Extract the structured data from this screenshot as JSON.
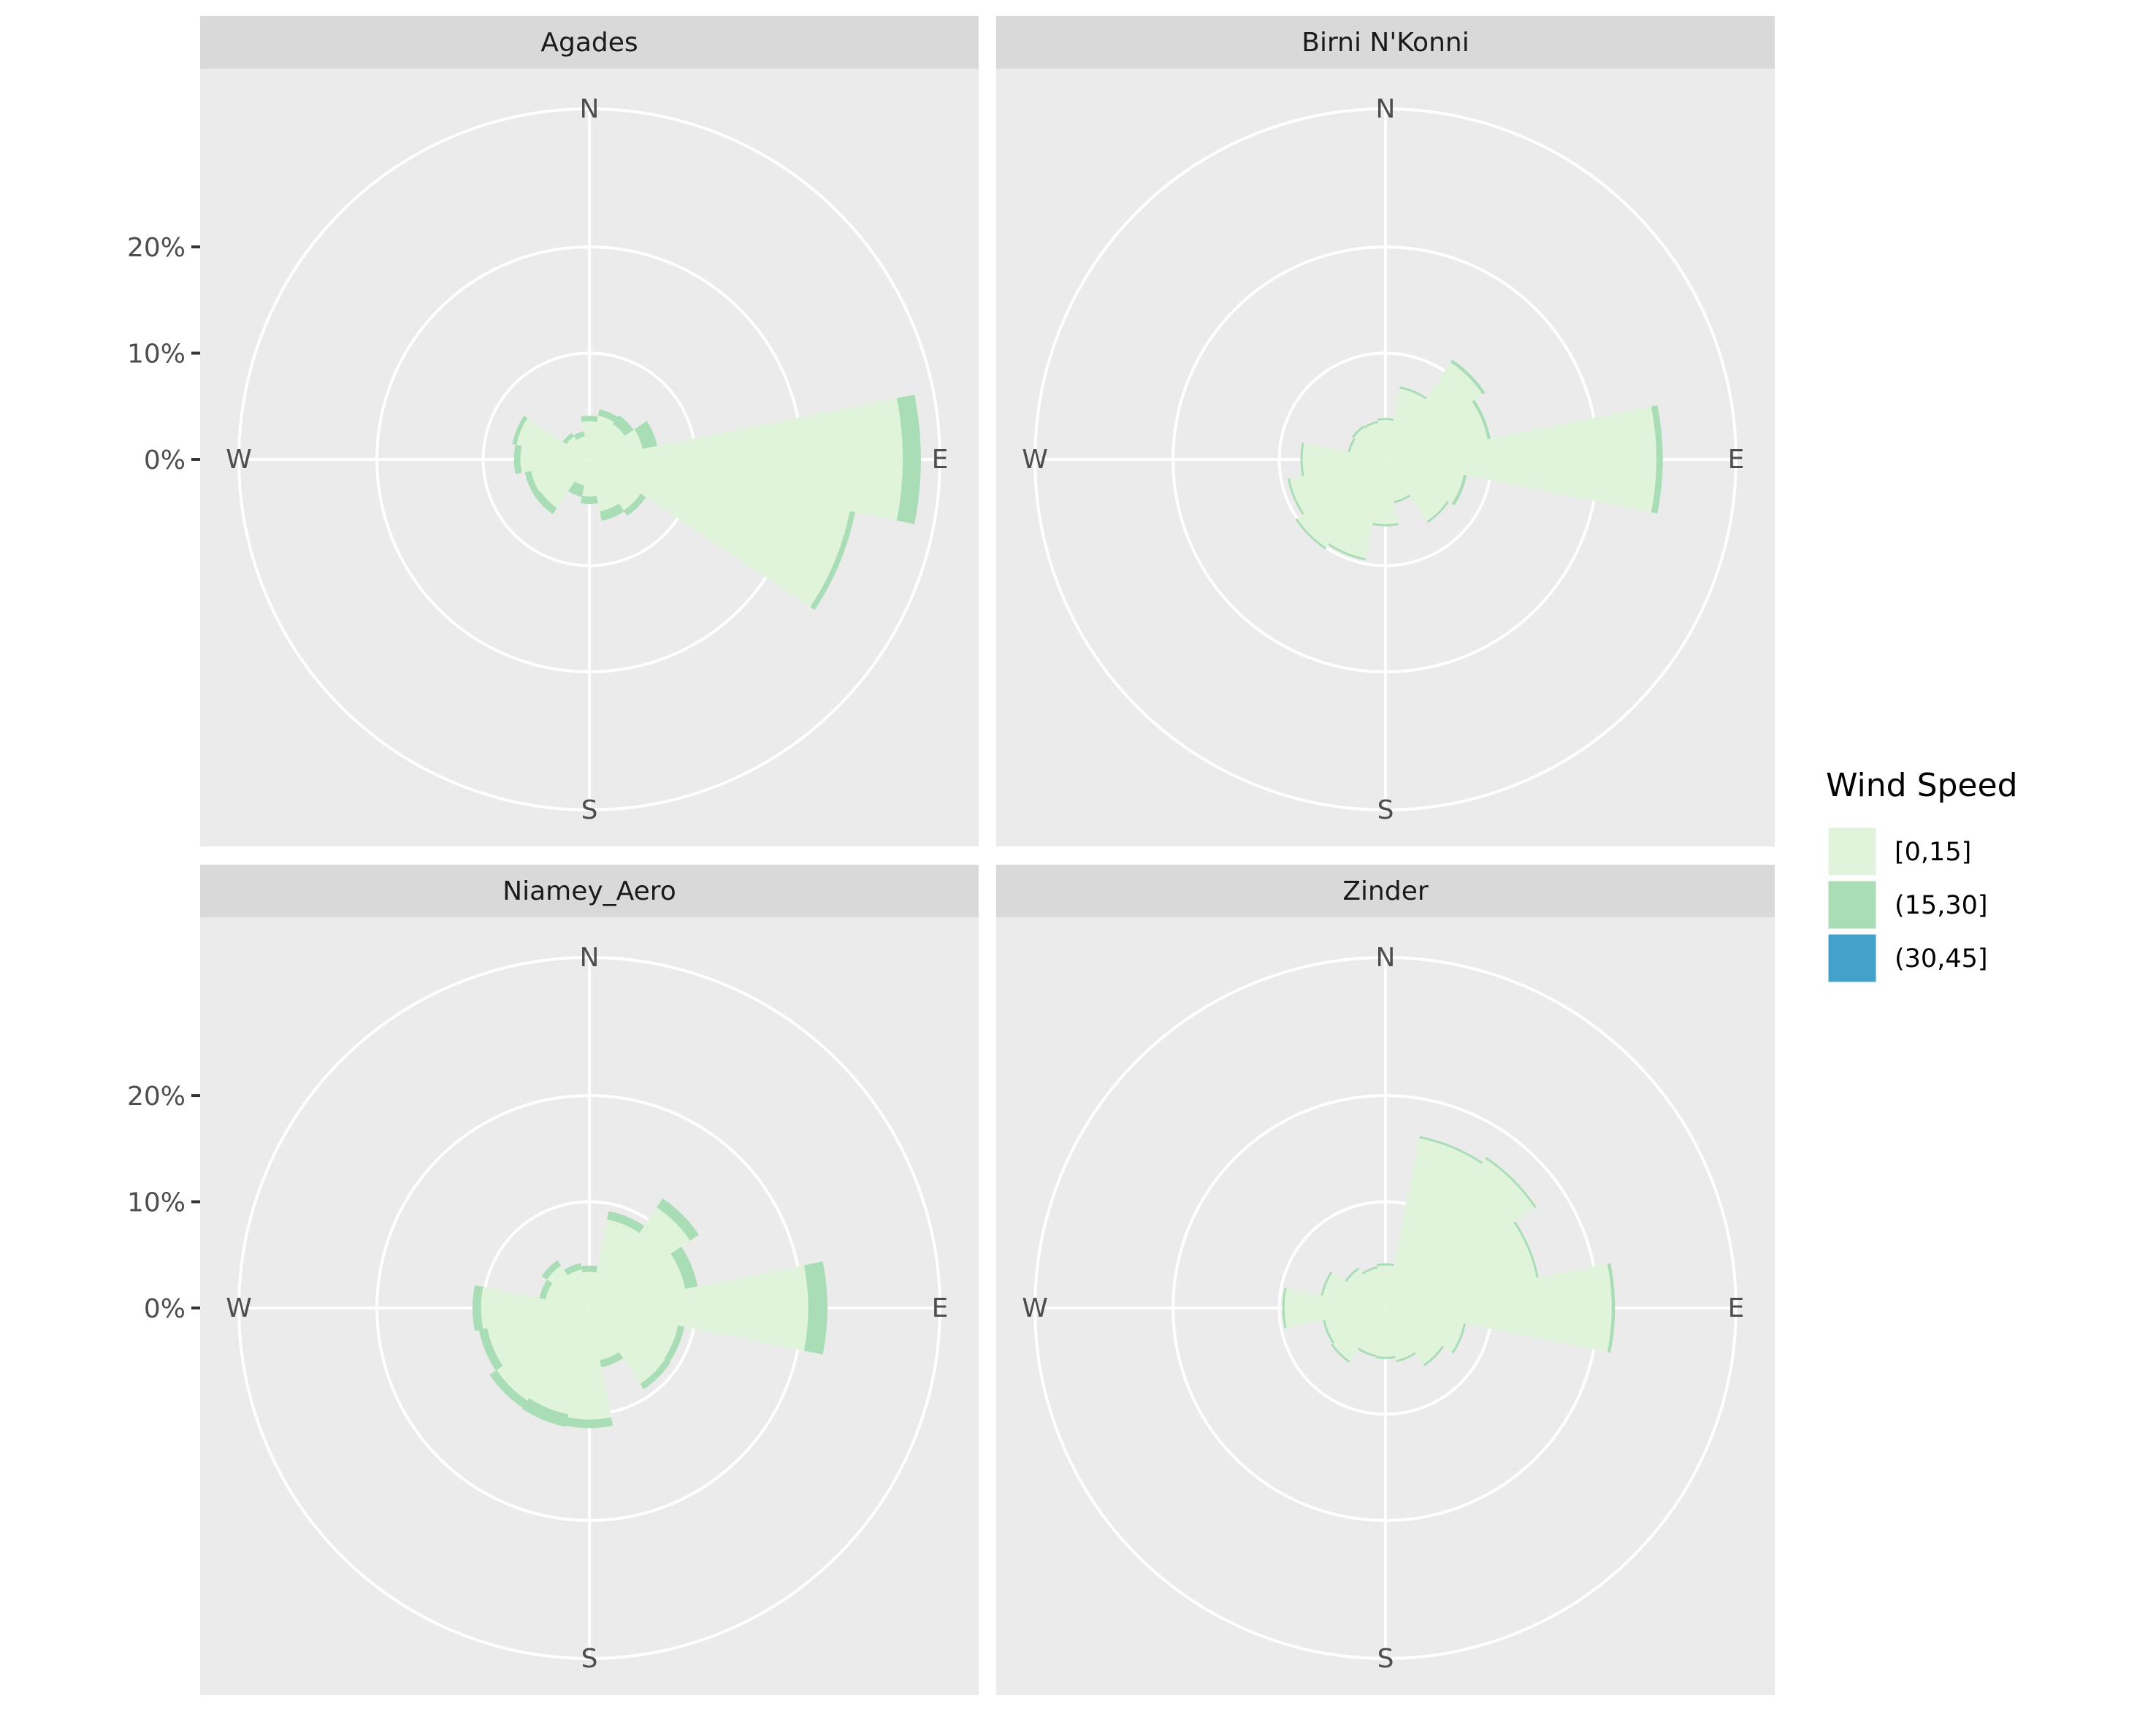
{
  "chart_data": {
    "type": "windrose",
    "radial_axis": {
      "ticks": [
        0,
        10,
        20
      ],
      "tick_labels": [
        "0%",
        "10%",
        "20%"
      ],
      "max": 33
    },
    "compass_labels": [
      "N",
      "E",
      "S",
      "W"
    ],
    "legend": {
      "title": "Wind Speed",
      "position": "right",
      "entries": [
        {
          "label": "[0,15]",
          "color": "#e0f3db"
        },
        {
          "label": "(15,30]",
          "color": "#a8ddb5"
        },
        {
          "label": "(30,45]",
          "color": "#43a2ca"
        }
      ]
    },
    "direction_bin_width_deg": 22.5,
    "panels": [
      {
        "title": "Agades",
        "series": [
          {
            "name": "[0,15]",
            "values": [
              3.6,
              4.2,
              4.0,
              5.1,
              29.5,
              25.0,
              5.8,
              5.0,
              3.5,
              2.5,
              5.5,
              5.6,
              6.5,
              7.0,
              2.6,
              2.2
            ]
          },
          {
            "name": "(15,30]",
            "values": [
              0.5,
              0.6,
              1.0,
              1.4,
              1.7,
              0.5,
              0.6,
              0.9,
              0.7,
              1.1,
              0.7,
              0.6,
              0.6,
              0.4,
              0.4,
              0.5
            ]
          }
        ]
      },
      {
        "title": "Birni N'Konni",
        "series": [
          {
            "name": "[0,15]",
            "values": [
              3.7,
              6.8,
              11.0,
              9.8,
              25.5,
              7.5,
              7.0,
              4.0,
              6.1,
              9.5,
              10.0,
              9.2,
              7.8,
              3.4,
              3.6,
              3.5
            ]
          },
          {
            "name": "(15,30]",
            "values": [
              0.2,
              0.2,
              0.3,
              0.3,
              0.6,
              0.3,
              0.2,
              0.2,
              0.2,
              0.2,
              0.2,
              0.2,
              0.2,
              0.2,
              0.2,
              0.2
            ]
          }
        ]
      },
      {
        "title": "Niamey_Aero",
        "series": [
          {
            "name": "[0,15]",
            "values": [
              3.4,
              8.5,
              11.4,
              9.2,
              20.6,
              8.5,
              8.6,
              5.0,
              10.5,
              10.2,
              10.5,
              9.8,
              10.2,
              4.2,
              4.8,
              3.7
            ]
          },
          {
            "name": "(15,30]",
            "values": [
              0.6,
              0.8,
              1.0,
              1.2,
              1.8,
              0.6,
              0.6,
              0.7,
              0.8,
              1.2,
              0.8,
              0.8,
              0.8,
              0.6,
              0.6,
              0.6
            ]
          }
        ]
      },
      {
        "title": "Zinder",
        "series": [
          {
            "name": "[0,15]",
            "values": [
              4.0,
              16.3,
              16.9,
              14.5,
              21.3,
              7.5,
              6.4,
              5.0,
              4.6,
              4.5,
              6.0,
              5.8,
              9.5,
              6.0,
              4.4,
              3.8
            ]
          },
          {
            "name": "(15,30]",
            "values": [
              0.2,
              0.2,
              0.2,
              0.2,
              0.3,
              0.2,
              0.2,
              0.2,
              0.2,
              0.2,
              0.2,
              0.2,
              0.2,
              0.2,
              0.2,
              0.2
            ]
          }
        ]
      }
    ]
  }
}
